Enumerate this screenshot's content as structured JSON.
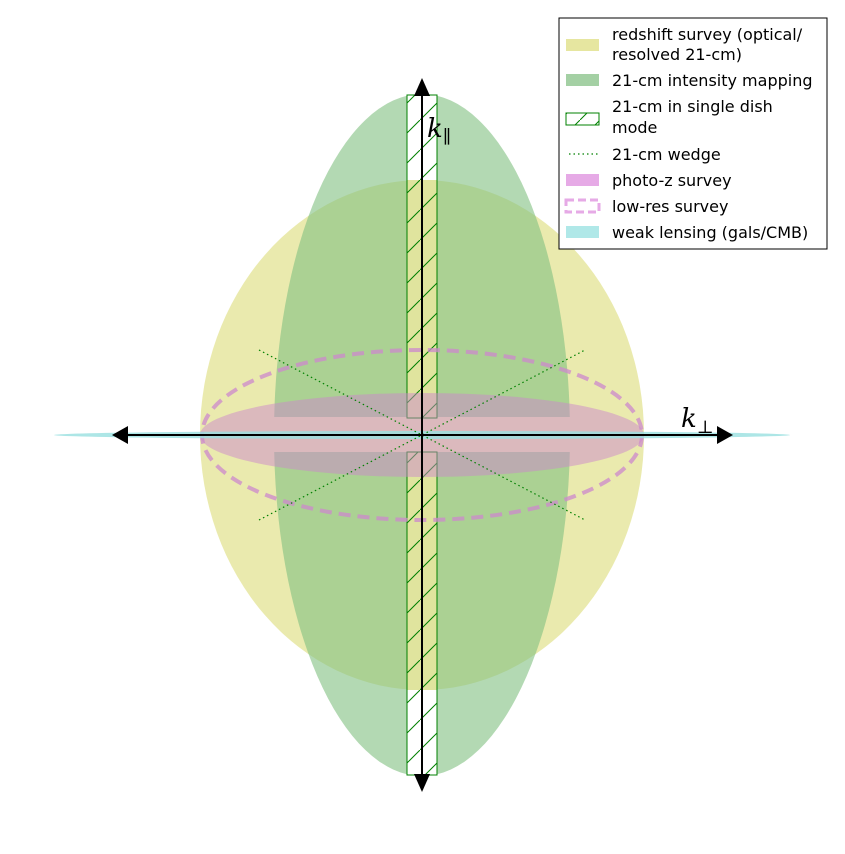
{
  "axes": {
    "k_par_label": "k",
    "k_par_sub": "∥",
    "k_perp_label": "k",
    "k_perp_sub": "⊥"
  },
  "legend": {
    "position": "top-right",
    "items": [
      {
        "key": "redshift",
        "line1": "redshift survey (optical/",
        "line2": "resolved 21-cm",
        "line2_suffix": ")",
        "color": "#e6e6a0"
      },
      {
        "key": "intensity",
        "line1": "21-cm intensity mapping",
        "color": "#a4d0a4"
      },
      {
        "key": "single-dish",
        "line1": "21-cm in single dish",
        "line2": " mode",
        "color": "#008000"
      },
      {
        "key": "wedge",
        "line1": "21-cm wedge",
        "color": "#008000"
      },
      {
        "key": "photoz",
        "line1": "photo-z survey",
        "color": "#e6aae6"
      },
      {
        "key": "lowres",
        "line1": "low-res survey",
        "color": "#e6aae6"
      },
      {
        "key": "lensing",
        "line1": "weak lensing (gals/CMB)",
        "color": "#b0e8e8"
      }
    ]
  }
}
